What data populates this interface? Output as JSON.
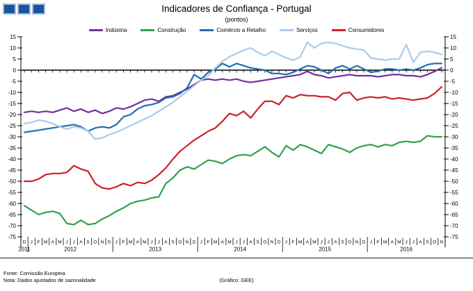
{
  "logo": {
    "fill": "#15589E",
    "border": "#A7BFD9",
    "square_count": 3
  },
  "footer": {
    "source": "Fonte: Comissão Europeia",
    "note": "Nota: Dados ajustados de sazonalidade",
    "credit": "(Gráfico: GEE)"
  },
  "chart_data": {
    "type": "line",
    "title": "Indicadores de Confiança - Portugal",
    "subtitle": "(pontos)",
    "ylim": [
      -75,
      15
    ],
    "ytick_step": 5,
    "grid": "zero-line-only",
    "legend_position": "top",
    "axis_color": "#000000",
    "x_tick_labels": [
      "D",
      "J",
      "F",
      "M",
      "A",
      "M",
      "J",
      "J",
      "A",
      "S",
      "O",
      "N",
      "D",
      "J",
      "F",
      "M",
      "A",
      "M",
      "J",
      "J",
      "A",
      "S",
      "O",
      "N",
      "D",
      "J",
      "F",
      "M",
      "A",
      "M",
      "J",
      "J",
      "A",
      "S",
      "O",
      "N",
      "D",
      "J",
      "F",
      "M",
      "A",
      "M",
      "J",
      "J",
      "A",
      "S",
      "O",
      "N",
      "D",
      "J",
      "F",
      "M",
      "A",
      "M",
      "J",
      "J",
      "A",
      "S",
      "O",
      "N"
    ],
    "years": [
      {
        "label": "2011",
        "from": 0,
        "to": 0
      },
      {
        "label": "2012",
        "from": 1,
        "to": 12
      },
      {
        "label": "2013",
        "from": 13,
        "to": 24
      },
      {
        "label": "2014",
        "from": 25,
        "to": 36
      },
      {
        "label": "2015",
        "from": 37,
        "to": 48
      },
      {
        "label": "2016",
        "from": 49,
        "to": 59
      }
    ],
    "series": [
      {
        "name": "Indústria",
        "color": "#7030A0",
        "values": [
          -19,
          -18.5,
          -19,
          -18.5,
          -19,
          -18,
          -17,
          -18.5,
          -17.5,
          -19,
          -18,
          -19.5,
          -18.5,
          -17,
          -17.5,
          -16.5,
          -15,
          -13.5,
          -13,
          -14,
          -12,
          -11.5,
          -10,
          -8.5,
          -6.5,
          -4.5,
          -4,
          -4.5,
          -4,
          -4.5,
          -4,
          -5,
          -5.5,
          -5,
          -4.5,
          -4,
          -3.5,
          -3,
          -2.5,
          -2,
          -0.5,
          -2,
          -2.5,
          -3.5,
          -3,
          -2.5,
          -2,
          -2.5,
          -2.5,
          -2.5,
          -3,
          -2.5,
          -2,
          -2,
          -2.5,
          -2.5,
          -3,
          -2,
          -0.5,
          1
        ]
      },
      {
        "name": "Construção",
        "color": "#2DA249",
        "values": [
          -61,
          -63,
          -65,
          -64,
          -63.5,
          -64.5,
          -69,
          -69.5,
          -67.5,
          -69.5,
          -69,
          -67,
          -65.5,
          -63.5,
          -62,
          -60,
          -59,
          -58.5,
          -57.5,
          -57,
          -51,
          -48.5,
          -45,
          -43.5,
          -44.5,
          -42.5,
          -40.5,
          -41,
          -42,
          -40,
          -38.5,
          -38,
          -38.5,
          -36.5,
          -34.5,
          -37,
          -39,
          -34,
          -36,
          -33.5,
          -34.5,
          -36,
          -37.5,
          -33.5,
          -34.5,
          -35.5,
          -37,
          -35,
          -34,
          -33.5,
          -34.5,
          -33.5,
          -34,
          -32.5,
          -32,
          -32.5,
          -32,
          -29.5,
          -30,
          -30
        ]
      },
      {
        "name": "Comércio a Retalho",
        "color": "#1F6DB6",
        "values": [
          -28,
          -27.5,
          -27,
          -26.5,
          -26,
          -25.5,
          -25,
          -24.5,
          -25.5,
          -27.5,
          -26,
          -25.5,
          -26,
          -24.5,
          -21,
          -20,
          -17.5,
          -16,
          -15.5,
          -14.5,
          -12.5,
          -12,
          -10.5,
          -8,
          -2,
          -4,
          -1,
          0.5,
          3,
          1.5,
          3,
          2,
          1,
          0.5,
          0,
          -1.5,
          -1.5,
          -2,
          -1,
          0.5,
          2,
          1.5,
          0,
          -1.5,
          1,
          2,
          0.5,
          2,
          0.5,
          -1,
          -0.5,
          0.5,
          0.5,
          0,
          0.5,
          0,
          1,
          2.5,
          3,
          3
        ]
      },
      {
        "name": "Serviços",
        "color": "#A9CBEA",
        "values": [
          -24,
          -23.5,
          -22.5,
          -23,
          -24,
          -25.5,
          -26.5,
          -25.5,
          -26,
          -27.5,
          -31,
          -30.5,
          -29,
          -28,
          -26.5,
          -25,
          -23.5,
          -22,
          -20.5,
          -18.5,
          -16.5,
          -14.5,
          -12,
          -9.5,
          -7,
          -4.5,
          -2.5,
          1,
          4,
          6,
          7.5,
          9,
          10,
          8,
          6.5,
          8.5,
          7,
          5.5,
          4.5,
          6,
          12.5,
          10,
          12,
          12.5,
          12,
          11,
          10,
          9.5,
          9,
          5.5,
          5,
          4.5,
          5,
          5,
          11.5,
          3.5,
          8,
          8.5,
          8,
          7
        ]
      },
      {
        "name": "Consumidores",
        "color": "#CB2026",
        "values": [
          -50,
          -50,
          -49,
          -47,
          -46.5,
          -46.5,
          -46,
          -43,
          -44.5,
          -45.5,
          -51,
          -53,
          -53.5,
          -52.5,
          -51,
          -52,
          -50.5,
          -51,
          -49.5,
          -47,
          -44,
          -40,
          -36.5,
          -34,
          -31.5,
          -29.5,
          -27.5,
          -26,
          -23,
          -19.5,
          -20.5,
          -18.5,
          -21.5,
          -17.5,
          -14,
          -14,
          -15.5,
          -11.5,
          -12.5,
          -11,
          -11.5,
          -11.5,
          -12,
          -12,
          -13.5,
          -10.5,
          -10,
          -13.5,
          -12.5,
          -12,
          -12.5,
          -12,
          -13,
          -12.5,
          -13,
          -13.5,
          -13,
          -12.5,
          -10.5,
          -7.5
        ]
      }
    ]
  }
}
